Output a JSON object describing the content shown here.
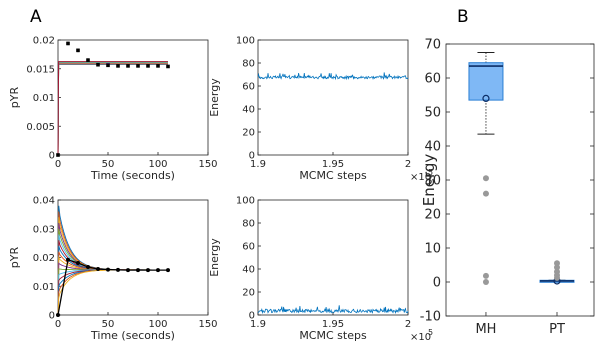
{
  "panel_labels": [
    "A",
    "B"
  ],
  "chart_data": [
    {
      "type": "line",
      "panel": "A1",
      "xlabel": "Time (seconds)",
      "ylabel": "pYR",
      "xlim": [
        0,
        150
      ],
      "ylim": [
        0,
        0.02
      ],
      "xticks": [
        "0",
        "50",
        "100",
        "150"
      ],
      "yticks": [
        "0",
        "0.005",
        "0.01",
        "0.015",
        "0.02"
      ],
      "data_points": {
        "x": [
          0,
          10,
          20,
          30,
          40,
          50,
          60,
          70,
          80,
          90,
          100,
          110
        ],
        "y": [
          0,
          0.0194,
          0.0182,
          0.0165,
          0.0157,
          0.0156,
          0.0155,
          0.0155,
          0.0155,
          0.0155,
          0.0155,
          0.0154
        ],
        "err": [
          0,
          0.0003,
          0.0003,
          0.0003,
          0.0002,
          0.0002,
          0.0002,
          0.0002,
          0.0002,
          0.0002,
          0.0002,
          0.0002
        ]
      },
      "model_level": 0.016,
      "colors": [
        "#0072bd",
        "#d95319",
        "#edb120",
        "#7e2f8e",
        "#77ac30",
        "#4dbeee",
        "#a2142f"
      ]
    },
    {
      "type": "line",
      "panel": "A2",
      "xlabel": "MCMC steps",
      "ylabel": "Energy",
      "xlim": [
        190000,
        200000
      ],
      "ylim": [
        0,
        100
      ],
      "xticks": [
        "1.9",
        "1.95",
        "2"
      ],
      "yticks": [
        "0",
        "20",
        "40",
        "60",
        "80",
        "100"
      ],
      "exponent": "5",
      "series": [
        {
          "level": 67.5,
          "noise": 2.5,
          "color": "#0072bd"
        }
      ]
    },
    {
      "type": "line",
      "panel": "A3",
      "xlabel": "Time (seconds)",
      "ylabel": "pYR",
      "xlim": [
        0,
        150
      ],
      "ylim": [
        0,
        0.04
      ],
      "xticks": [
        "0",
        "50",
        "100",
        "150"
      ],
      "yticks": [
        "0",
        "0.01",
        "0.02",
        "0.03",
        "0.04"
      ],
      "data_points": {
        "x": [
          0,
          10,
          20,
          30,
          40,
          50,
          60,
          70,
          80,
          90,
          100,
          110
        ],
        "y": [
          0,
          0.0192,
          0.0181,
          0.0167,
          0.016,
          0.0158,
          0.0157,
          0.0156,
          0.0156,
          0.0156,
          0.0156,
          0.0156
        ]
      },
      "start_values": [
        0.038,
        0.036,
        0.034,
        0.032,
        0.03,
        0.028,
        0.026,
        0.024,
        0.022,
        0.02,
        0.018,
        0.016,
        0.014,
        0.012,
        0.01,
        0.008,
        0.006
      ],
      "final_level": 0.0157,
      "colors": [
        "#0072bd",
        "#d95319",
        "#edb120",
        "#7e2f8e",
        "#77ac30",
        "#4dbeee",
        "#a2142f"
      ]
    },
    {
      "type": "line",
      "panel": "A4",
      "xlabel": "MCMC steps",
      "ylabel": "Energy",
      "xlim": [
        190000,
        200000
      ],
      "ylim": [
        0,
        100
      ],
      "xticks": [
        "1.9",
        "1.95",
        "2"
      ],
      "yticks": [
        "0",
        "20",
        "40",
        "60",
        "80",
        "100"
      ],
      "exponent": "5",
      "series": [
        {
          "level": 3.5,
          "noise": 3.0,
          "color": "#0072bd"
        }
      ]
    },
    {
      "type": "box",
      "panel": "B",
      "ylabel": "Energy",
      "ylim": [
        -10,
        70
      ],
      "yticks": [
        "-10",
        "0",
        "10",
        "20",
        "30",
        "40",
        "50",
        "60",
        "70"
      ],
      "categories": [
        "MH",
        "PT"
      ],
      "boxes": [
        {
          "q1": 53.5,
          "median": 63.5,
          "q3": 64.5,
          "mean": 54,
          "whisker_low": 43.5,
          "whisker_high": 67.5,
          "outliers": [
            30.5,
            26,
            1.8,
            0
          ],
          "fill": "#7fb8f5",
          "edge": "#2a7fd4"
        },
        {
          "q1": 0,
          "median": 0.3,
          "q3": 0.5,
          "mean": 0.3,
          "whisker_low": 0,
          "whisker_high": 0.5,
          "outliers": [
            5.5,
            4.3,
            3.0,
            2.0,
            1.2
          ],
          "fill": "#7fb8f5",
          "edge": "#2a7fd4"
        }
      ]
    }
  ]
}
